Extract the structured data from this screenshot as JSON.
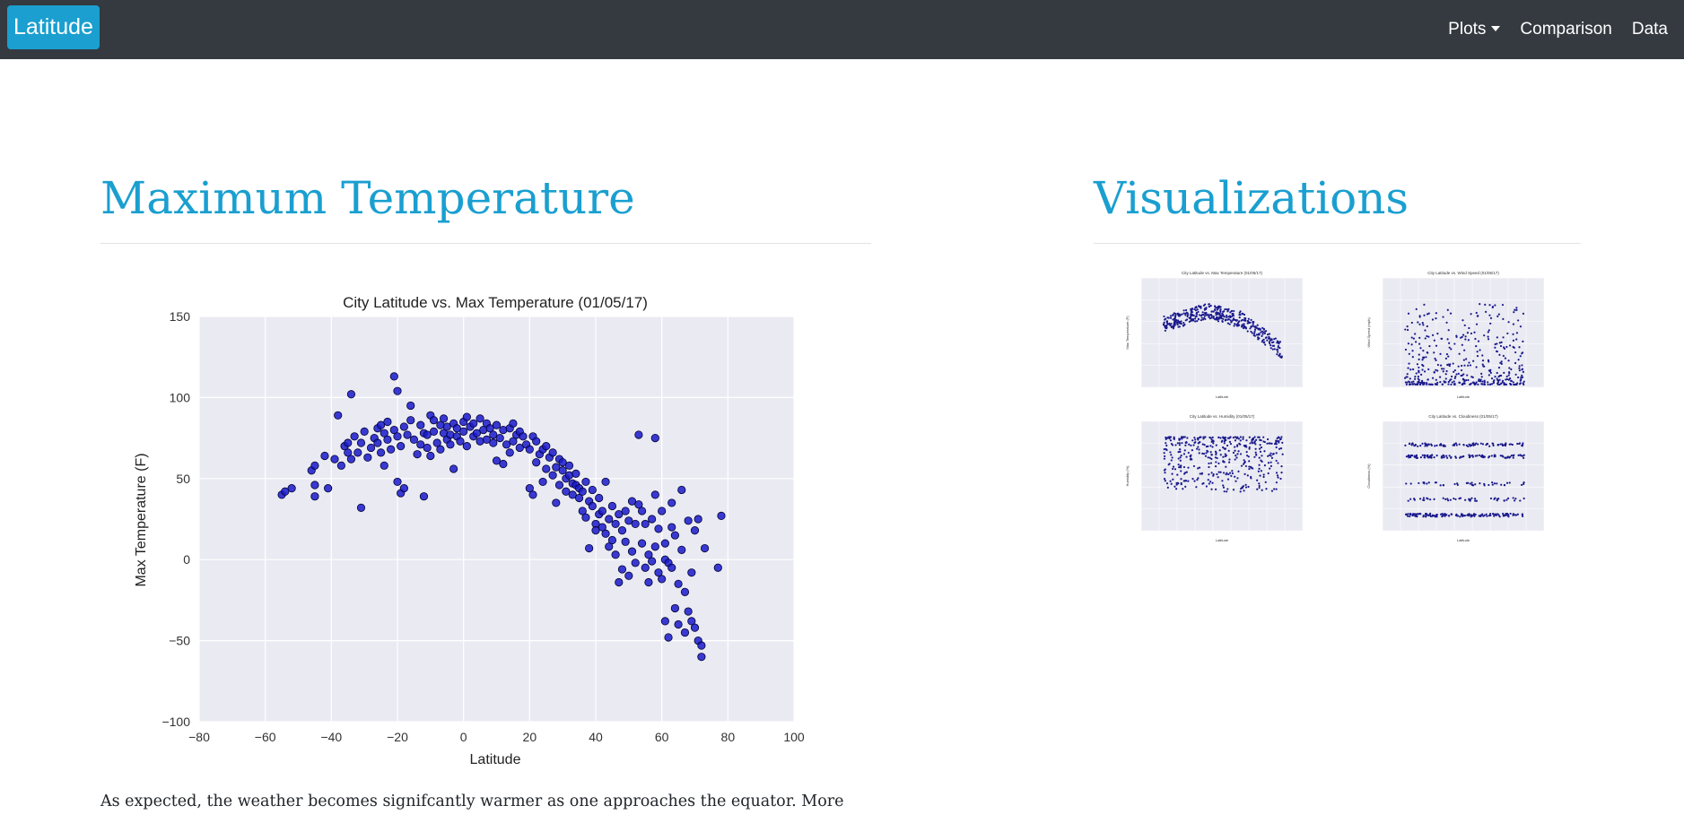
{
  "navbar": {
    "brand": "Latitude",
    "links": [
      {
        "label": "Plots",
        "dropdown": true
      },
      {
        "label": "Comparison",
        "dropdown": false
      },
      {
        "label": "Data",
        "dropdown": false
      }
    ],
    "colors": {
      "background": "#343a40",
      "brand": "#1a9fd0",
      "text": "#ffffff"
    }
  },
  "main": {
    "heading": "Maximum Temperature",
    "paragraph": "As expected, the weather becomes signifcantly warmer as one approaches the equator. More"
  },
  "visualizations": {
    "heading": "Visualizations",
    "thumbnails": [
      {
        "title": "City Latitude vs. Max Temperature (01/05/17)",
        "ylabel": "Max Temperature (F)",
        "xlabel": "Latitude"
      },
      {
        "title": "City Latitude vs. Wind Speed (01/05/17)",
        "ylabel": "Wind Speed (mph)",
        "xlabel": "Latitude"
      },
      {
        "title": "City Latitude vs. Humidity (01/05/17)",
        "ylabel": "Humidity (%)",
        "xlabel": "Latitude"
      },
      {
        "title": "City Latitude vs. Cloudiness (01/05/17)",
        "ylabel": "Cloudiness (%)",
        "xlabel": "Latitude"
      }
    ]
  },
  "colors": {
    "accent": "#1a9fd0",
    "plot_bg": "#eaeaf2",
    "marker": "#1a1acc",
    "grid": "#ffffff"
  },
  "chart_data": {
    "type": "scatter",
    "title": "City Latitude vs. Max Temperature (01/05/17)",
    "xlabel": "Latitude",
    "ylabel": "Max Temperature (F)",
    "xlim": [
      -80,
      100
    ],
    "ylim": [
      -100,
      150
    ],
    "xticks": [
      -80,
      -60,
      -40,
      -20,
      0,
      20,
      40,
      60,
      80,
      100
    ],
    "yticks": [
      -100,
      -50,
      0,
      50,
      100,
      150
    ],
    "xtick_labels": [
      "−80",
      "−60",
      "−40",
      "−20",
      "0",
      "20",
      "40",
      "60",
      "80",
      "100"
    ],
    "ytick_labels": [
      "−100",
      "−50",
      "0",
      "50",
      "100",
      "150"
    ],
    "grid": true,
    "series": [
      {
        "points": [
          [
            -55,
            40
          ],
          [
            -54,
            42
          ],
          [
            -52,
            44
          ],
          [
            -46,
            55
          ],
          [
            -45,
            58
          ],
          [
            -45,
            46
          ],
          [
            -45,
            39
          ],
          [
            -42,
            64
          ],
          [
            -41,
            44
          ],
          [
            -39,
            62
          ],
          [
            -38,
            89
          ],
          [
            -37,
            58
          ],
          [
            -36,
            70
          ],
          [
            -35,
            66
          ],
          [
            -35,
            72
          ],
          [
            -34,
            102
          ],
          [
            -34,
            62
          ],
          [
            -33,
            76
          ],
          [
            -32,
            66
          ],
          [
            -31,
            32
          ],
          [
            -31,
            72
          ],
          [
            -30,
            79
          ],
          [
            -29,
            63
          ],
          [
            -28,
            69
          ],
          [
            -27,
            75
          ],
          [
            -26,
            81
          ],
          [
            -26,
            72
          ],
          [
            -25,
            83
          ],
          [
            -25,
            66
          ],
          [
            -24,
            58
          ],
          [
            -24,
            78
          ],
          [
            -23,
            85
          ],
          [
            -23,
            74
          ],
          [
            -22,
            68
          ],
          [
            -21,
            113
          ],
          [
            -21,
            80
          ],
          [
            -20,
            104
          ],
          [
            -20,
            48
          ],
          [
            -20,
            76
          ],
          [
            -19,
            70
          ],
          [
            -19,
            41
          ],
          [
            -18,
            44
          ],
          [
            -18,
            82
          ],
          [
            -17,
            77
          ],
          [
            -16,
            95
          ],
          [
            -16,
            86
          ],
          [
            -15,
            74
          ],
          [
            -14,
            65
          ],
          [
            -13,
            83
          ],
          [
            -13,
            71
          ],
          [
            -12,
            39
          ],
          [
            -12,
            78
          ],
          [
            -11,
            69
          ],
          [
            -11,
            77
          ],
          [
            -10,
            89
          ],
          [
            -10,
            64
          ],
          [
            -9,
            79
          ],
          [
            -9,
            86
          ],
          [
            -8,
            72
          ],
          [
            -7,
            83
          ],
          [
            -7,
            68
          ],
          [
            -6,
            78
          ],
          [
            -6,
            87
          ],
          [
            -5,
            74
          ],
          [
            -5,
            82
          ],
          [
            -4,
            71
          ],
          [
            -4,
            77
          ],
          [
            -3,
            56
          ],
          [
            -3,
            84
          ],
          [
            -2,
            76
          ],
          [
            -2,
            81
          ],
          [
            -1,
            73
          ],
          [
            0,
            85
          ],
          [
            0,
            79
          ],
          [
            1,
            88
          ],
          [
            1,
            70
          ],
          [
            2,
            82
          ],
          [
            3,
            76
          ],
          [
            3,
            84
          ],
          [
            4,
            78
          ],
          [
            5,
            73
          ],
          [
            5,
            87
          ],
          [
            6,
            80
          ],
          [
            7,
            74
          ],
          [
            7,
            84
          ],
          [
            8,
            81
          ],
          [
            9,
            77
          ],
          [
            9,
            72
          ],
          [
            10,
            83
          ],
          [
            10,
            61
          ],
          [
            11,
            75
          ],
          [
            12,
            59
          ],
          [
            12,
            80
          ],
          [
            13,
            71
          ],
          [
            14,
            81
          ],
          [
            14,
            66
          ],
          [
            15,
            73
          ],
          [
            15,
            84
          ],
          [
            16,
            77
          ],
          [
            17,
            69
          ],
          [
            17,
            79
          ],
          [
            18,
            76
          ],
          [
            19,
            71
          ],
          [
            20,
            44
          ],
          [
            20,
            68
          ],
          [
            21,
            76
          ],
          [
            21,
            40
          ],
          [
            22,
            60
          ],
          [
            22,
            73
          ],
          [
            23,
            65
          ],
          [
            24,
            68
          ],
          [
            24,
            48
          ],
          [
            25,
            70
          ],
          [
            25,
            56
          ],
          [
            26,
            63
          ],
          [
            27,
            52
          ],
          [
            27,
            66
          ],
          [
            28,
            57
          ],
          [
            28,
            35
          ],
          [
            29,
            62
          ],
          [
            29,
            46
          ],
          [
            30,
            55
          ],
          [
            30,
            60
          ],
          [
            31,
            42
          ],
          [
            31,
            50
          ],
          [
            32,
            52
          ],
          [
            32,
            58
          ],
          [
            33,
            40
          ],
          [
            33,
            47
          ],
          [
            34,
            46
          ],
          [
            34,
            53
          ],
          [
            35,
            38
          ],
          [
            35,
            44
          ],
          [
            36,
            30
          ],
          [
            36,
            42
          ],
          [
            37,
            48
          ],
          [
            37,
            26
          ],
          [
            38,
            36
          ],
          [
            38,
            7
          ],
          [
            39,
            43
          ],
          [
            39,
            33
          ],
          [
            40,
            22
          ],
          [
            40,
            18
          ],
          [
            41,
            38
          ],
          [
            41,
            28
          ],
          [
            42,
            30
          ],
          [
            42,
            20
          ],
          [
            43,
            48
          ],
          [
            43,
            16
          ],
          [
            44,
            8
          ],
          [
            44,
            25
          ],
          [
            45,
            33
          ],
          [
            45,
            12
          ],
          [
            46,
            22
          ],
          [
            46,
            3
          ],
          [
            47,
            28
          ],
          [
            47,
            -14
          ],
          [
            48,
            18
          ],
          [
            48,
            -6
          ],
          [
            49,
            30
          ],
          [
            49,
            11
          ],
          [
            50,
            24
          ],
          [
            50,
            -10
          ],
          [
            51,
            36
          ],
          [
            51,
            5
          ],
          [
            52,
            22
          ],
          [
            52,
            -2
          ],
          [
            53,
            77
          ],
          [
            53,
            34
          ],
          [
            54,
            30
          ],
          [
            54,
            10
          ],
          [
            55,
            -5
          ],
          [
            55,
            22
          ],
          [
            56,
            3
          ],
          [
            56,
            -14
          ],
          [
            57,
            25
          ],
          [
            57,
            -1
          ],
          [
            58,
            75
          ],
          [
            58,
            40
          ],
          [
            58,
            8
          ],
          [
            59,
            19
          ],
          [
            59,
            -8
          ],
          [
            60,
            30
          ],
          [
            60,
            -12
          ],
          [
            61,
            0
          ],
          [
            61,
            10
          ],
          [
            61,
            -38
          ],
          [
            62,
            -2
          ],
          [
            62,
            -48
          ],
          [
            63,
            35
          ],
          [
            63,
            20
          ],
          [
            63,
            -5
          ],
          [
            64,
            -30
          ],
          [
            64,
            15
          ],
          [
            65,
            -40
          ],
          [
            65,
            -15
          ],
          [
            66,
            43
          ],
          [
            66,
            6
          ],
          [
            67,
            -20
          ],
          [
            67,
            -45
          ],
          [
            68,
            24
          ],
          [
            68,
            -32
          ],
          [
            69,
            -38
          ],
          [
            69,
            -8
          ],
          [
            70,
            18
          ],
          [
            70,
            -42
          ],
          [
            71,
            -50
          ],
          [
            71,
            25
          ],
          [
            72,
            -60
          ],
          [
            72,
            -53
          ],
          [
            73,
            7
          ],
          [
            77,
            -5
          ],
          [
            78,
            27
          ]
        ]
      }
    ]
  }
}
